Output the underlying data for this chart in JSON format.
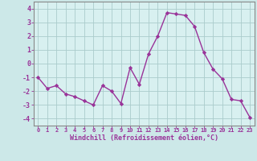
{
  "x": [
    0,
    1,
    2,
    3,
    4,
    5,
    6,
    7,
    8,
    9,
    10,
    11,
    12,
    13,
    14,
    15,
    16,
    17,
    18,
    19,
    20,
    21,
    22,
    23
  ],
  "y": [
    -1.0,
    -1.8,
    -1.6,
    -2.2,
    -2.4,
    -2.7,
    -3.0,
    -1.6,
    -2.0,
    -2.9,
    -0.3,
    -1.5,
    0.7,
    2.0,
    3.7,
    3.6,
    3.5,
    2.7,
    0.8,
    -0.4,
    -1.1,
    -2.6,
    -2.7,
    -3.9
  ],
  "line_color": "#993399",
  "marker": "D",
  "markersize": 2.2,
  "linewidth": 1.0,
  "bg_color": "#cce8e8",
  "plot_bg_color": "#d8f0f0",
  "grid_color": "#aacccc",
  "xlabel": "Windchill (Refroidissement éolien,°C)",
  "xlabel_color": "#993399",
  "tick_color": "#993399",
  "spine_color": "#888888",
  "ylim": [
    -4.5,
    4.5
  ],
  "yticks": [
    -4,
    -3,
    -2,
    -1,
    0,
    1,
    2,
    3,
    4
  ],
  "xticks": [
    0,
    1,
    2,
    3,
    4,
    5,
    6,
    7,
    8,
    9,
    10,
    11,
    12,
    13,
    14,
    15,
    16,
    17,
    18,
    19,
    20,
    21,
    22,
    23
  ]
}
